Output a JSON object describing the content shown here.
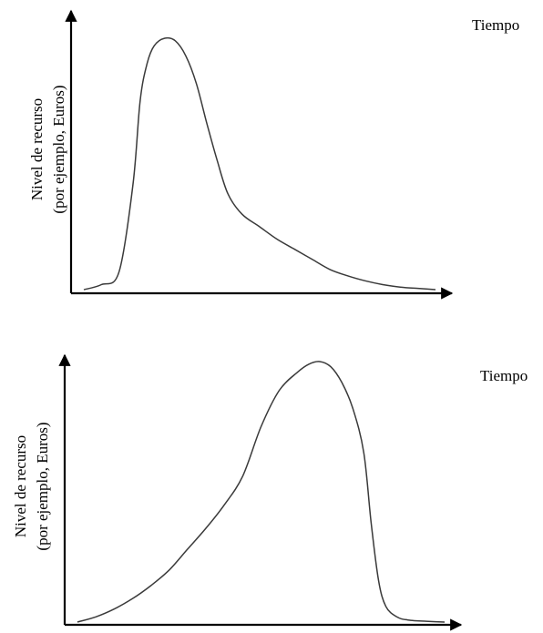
{
  "chart_data": [
    {
      "type": "line",
      "xlabel": "Tiempo",
      "ylabel_line1": "Nivel de recurso",
      "ylabel_line2": "(por ejemplo, Euros)",
      "xlim": [
        0,
        10
      ],
      "ylim": [
        0,
        10
      ],
      "grid": false,
      "series": [
        {
          "color": "#3a3a3a",
          "x": [
            0,
            0.5,
            1.0,
            1.4,
            1.6,
            1.8,
            2.0,
            2.3,
            2.6,
            2.9,
            3.2,
            3.5,
            3.8,
            4.1,
            4.5,
            5.0,
            5.5,
            6.0,
            6.5,
            7.0,
            7.5,
            8.0,
            8.5,
            9.0,
            9.5,
            10.0
          ],
          "y": [
            0.0,
            0.2,
            0.7,
            4.2,
            7.5,
            9.0,
            9.7,
            10.0,
            9.9,
            9.3,
            8.2,
            6.6,
            5.1,
            3.8,
            3.0,
            2.5,
            2.0,
            1.6,
            1.2,
            0.8,
            0.55,
            0.35,
            0.2,
            0.1,
            0.05,
            0.0
          ]
        }
      ]
    },
    {
      "type": "line",
      "xlabel": "Tiempo",
      "ylabel_line1": "Nivel de recurso",
      "ylabel_line2": "(por ejemplo, Euros)",
      "xlim": [
        0,
        10
      ],
      "ylim": [
        0,
        10
      ],
      "grid": false,
      "series": [
        {
          "color": "#3a3a3a",
          "x": [
            0,
            0.5,
            1.0,
            1.5,
            2.0,
            2.5,
            3.0,
            3.5,
            4.0,
            4.5,
            5.0,
            5.5,
            6.0,
            6.3,
            6.6,
            6.9,
            7.2,
            7.5,
            7.8,
            8.0,
            8.2,
            8.4,
            8.7,
            9.0,
            9.5,
            10.0
          ],
          "y": [
            0.0,
            0.2,
            0.5,
            0.9,
            1.4,
            2.0,
            2.8,
            3.6,
            4.5,
            5.6,
            7.5,
            8.9,
            9.6,
            9.9,
            10.0,
            9.8,
            9.2,
            8.2,
            6.5,
            3.8,
            1.6,
            0.6,
            0.2,
            0.08,
            0.03,
            0.0
          ]
        }
      ]
    }
  ]
}
